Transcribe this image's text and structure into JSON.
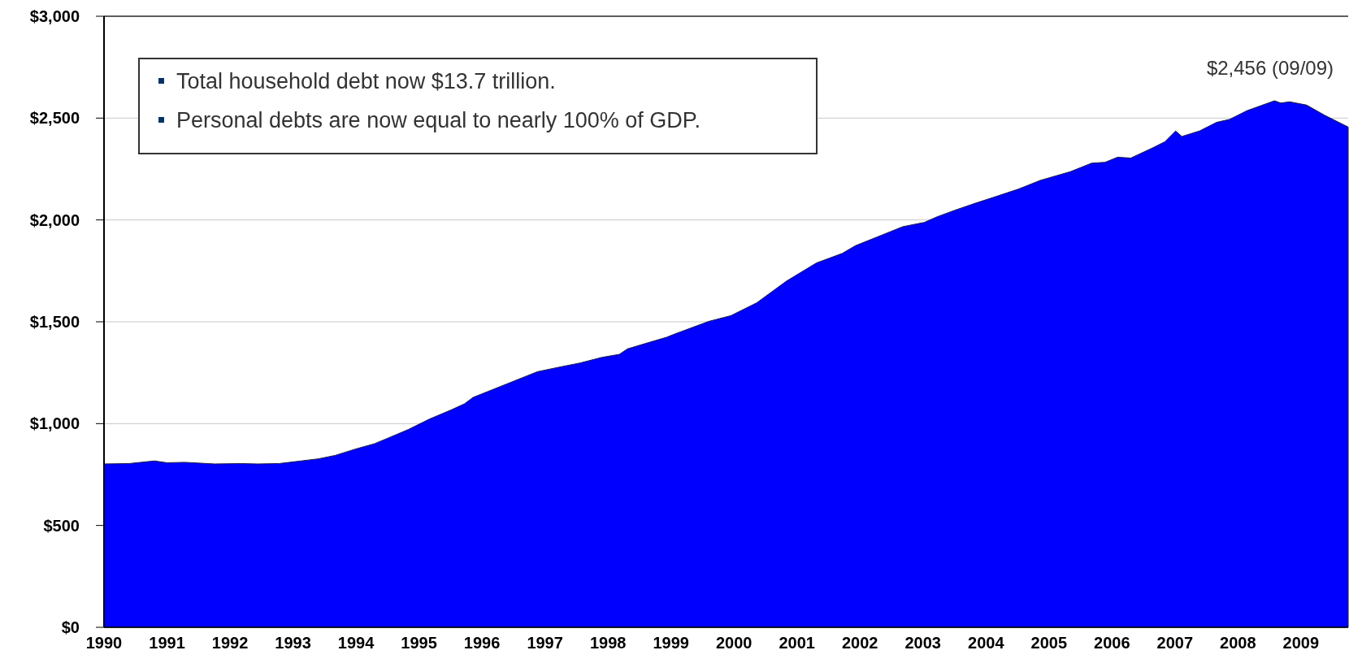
{
  "chart_data": {
    "type": "area",
    "x": [
      1990.0,
      1990.4,
      1990.8,
      1991.0,
      1991.28,
      1991.76,
      1992.17,
      1992.44,
      1992.78,
      1993.13,
      1993.4,
      1993.67,
      1994.0,
      1994.29,
      1994.5,
      1994.83,
      1995.17,
      1995.5,
      1995.72,
      1995.86,
      1996.2,
      1996.54,
      1996.88,
      1997.22,
      1997.56,
      1997.9,
      1998.18,
      1998.31,
      1998.59,
      1998.93,
      1999.06,
      1999.6,
      1999.95,
      2000.36,
      2000.83,
      2001.31,
      2001.72,
      2001.93,
      2002.27,
      2002.68,
      2003.02,
      2003.22,
      2003.5,
      2003.84,
      2004.11,
      2004.52,
      2004.86,
      2005.34,
      2005.68,
      2005.89,
      2006.09,
      2006.3,
      2006.64,
      2006.84,
      2007.01,
      2007.11,
      2007.39,
      2007.66,
      2007.87,
      2008.14,
      2008.58,
      2008.68,
      2008.82,
      2009.09,
      2009.37,
      2009.75
    ],
    "series": [
      {
        "color": "#0000ff",
        "values": [
          802,
          804,
          817,
          808,
          810,
          802,
          804,
          802,
          804,
          817,
          827,
          844,
          876,
          901,
          928,
          971,
          1023,
          1066,
          1097,
          1129,
          1171,
          1213,
          1255,
          1277,
          1298,
          1325,
          1340,
          1367,
          1393,
          1424,
          1440,
          1502,
          1530,
          1593,
          1699,
          1789,
          1836,
          1874,
          1916,
          1967,
          1988,
          2015,
          2047,
          2083,
          2110,
          2152,
          2194,
          2237,
          2279,
          2283,
          2308,
          2304,
          2353,
          2384,
          2437,
          2410,
          2437,
          2479,
          2494,
          2536,
          2585,
          2574,
          2580,
          2564,
          2515,
          2456
        ]
      }
    ],
    "xlim": [
      1990,
      2009.75
    ],
    "xticks": [
      1990,
      1991,
      1992,
      1993,
      1994,
      1995,
      1996,
      1997,
      1998,
      1999,
      2000,
      2001,
      2002,
      2003,
      2004,
      2005,
      2006,
      2007,
      2008,
      2009
    ],
    "ylim": [
      0,
      3000
    ],
    "yticks": [
      {
        "value": 0,
        "label": "$0"
      },
      {
        "value": 500,
        "label": "$500"
      },
      {
        "value": 1000,
        "label": "$1,000"
      },
      {
        "value": 1500,
        "label": "$1,500"
      },
      {
        "value": 2000,
        "label": "$2,000"
      },
      {
        "value": 2500,
        "label": "$2,500"
      },
      {
        "value": 3000,
        "label": "$3,000"
      }
    ],
    "grid": "y",
    "annotations": [
      "Total household debt now $13.7 trillion.",
      "Personal debts are now equal to nearly 100% of GDP.",
      {
        "text": "$2,456 (09/09)",
        "x": 2009.75,
        "y": 2456
      }
    ]
  }
}
